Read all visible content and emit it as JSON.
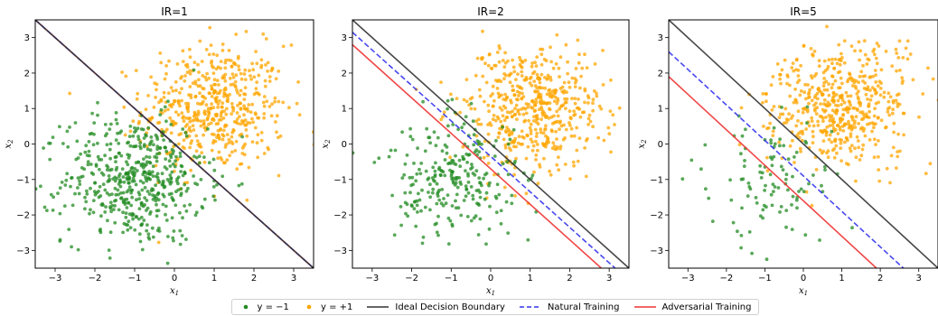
{
  "chart_data": [
    {
      "type": "scatter",
      "title": "IR=1",
      "xlabel": "x",
      "xlabel_sub": "1",
      "ylabel": "x",
      "ylabel_sub": "2",
      "xlim": [
        -3.5,
        3.5
      ],
      "ylim": [
        -3.5,
        3.5
      ],
      "xticks": [
        -3,
        -2,
        -1,
        0,
        1,
        2,
        3
      ],
      "yticks": [
        -3,
        -2,
        -1,
        0,
        1,
        2,
        3
      ],
      "grid": false,
      "series": [
        {
          "name": "y = −1",
          "kind": "points",
          "color": "#228B22",
          "center": [
            -1,
            -1
          ],
          "std": 0.9,
          "n": 520
        },
        {
          "name": "y = +1",
          "kind": "points",
          "color": "#FFA500",
          "center": [
            1,
            1
          ],
          "std": 0.9,
          "n": 520
        },
        {
          "name": "Ideal Decision Boundary",
          "kind": "line",
          "color": "#333333",
          "dash": "solid",
          "slope": -1,
          "intercept": 0
        },
        {
          "name": "Natural Training",
          "kind": "line",
          "color": "#3333ee",
          "dash": "dashed",
          "slope": -1,
          "intercept": 0
        },
        {
          "name": "Adversarial Training",
          "kind": "line",
          "color": "#ee3333",
          "dash": "solid",
          "slope": -1,
          "intercept": 0
        }
      ]
    },
    {
      "type": "scatter",
      "title": "IR=2",
      "xlabel": "x",
      "xlabel_sub": "1",
      "ylabel": "x",
      "ylabel_sub": "2",
      "xlim": [
        -3.5,
        3.5
      ],
      "ylim": [
        -3.5,
        3.5
      ],
      "xticks": [
        -3,
        -2,
        -1,
        0,
        1,
        2,
        3
      ],
      "yticks": [
        -3,
        -2,
        -1,
        0,
        1,
        2,
        3
      ],
      "grid": false,
      "series": [
        {
          "name": "y = −1",
          "kind": "points",
          "color": "#228B22",
          "center": [
            -1,
            -1
          ],
          "std": 0.9,
          "n": 260
        },
        {
          "name": "y = +1",
          "kind": "points",
          "color": "#FFA500",
          "center": [
            1,
            1
          ],
          "std": 0.9,
          "n": 520
        },
        {
          "name": "Ideal Decision Boundary",
          "kind": "line",
          "color": "#333333",
          "dash": "solid",
          "slope": -1,
          "intercept": 0
        },
        {
          "name": "Natural Training",
          "kind": "line",
          "color": "#3333ee",
          "dash": "dashed",
          "slope": -1,
          "intercept": -0.35
        },
        {
          "name": "Adversarial Training",
          "kind": "line",
          "color": "#ee3333",
          "dash": "solid",
          "slope": -1,
          "intercept": -0.7
        }
      ]
    },
    {
      "type": "scatter",
      "title": "IR=5",
      "xlabel": "x",
      "xlabel_sub": "1",
      "ylabel": "x",
      "ylabel_sub": "2",
      "xlim": [
        -3.5,
        3.5
      ],
      "ylim": [
        -3.5,
        3.5
      ],
      "xticks": [
        -3,
        -2,
        -1,
        0,
        1,
        2,
        3
      ],
      "yticks": [
        -3,
        -2,
        -1,
        0,
        1,
        2,
        3
      ],
      "grid": false,
      "series": [
        {
          "name": "y = −1",
          "kind": "points",
          "color": "#228B22",
          "center": [
            -1,
            -1
          ],
          "std": 0.9,
          "n": 105
        },
        {
          "name": "y = +1",
          "kind": "points",
          "color": "#FFA500",
          "center": [
            1,
            1
          ],
          "std": 0.9,
          "n": 520
        },
        {
          "name": "Ideal Decision Boundary",
          "kind": "line",
          "color": "#333333",
          "dash": "solid",
          "slope": -1,
          "intercept": 0
        },
        {
          "name": "Natural Training",
          "kind": "line",
          "color": "#3333ee",
          "dash": "dashed",
          "slope": -1,
          "intercept": -0.9
        },
        {
          "name": "Adversarial Training",
          "kind": "line",
          "color": "#ee3333",
          "dash": "solid",
          "slope": -1,
          "intercept": -1.6
        }
      ]
    }
  ],
  "legend": {
    "placement": "bottom-center",
    "items": [
      {
        "label": "y = −1",
        "marker": "dot",
        "color": "#228B22"
      },
      {
        "label": "y = +1",
        "marker": "dot",
        "color": "#FFA500"
      },
      {
        "label": "Ideal Decision Boundary",
        "marker": "solid",
        "color": "#333333"
      },
      {
        "label": "Natural Training",
        "marker": "dashed",
        "color": "#3333ee"
      },
      {
        "label": "Adversarial Training",
        "marker": "solid",
        "color": "#ee3333"
      }
    ]
  }
}
